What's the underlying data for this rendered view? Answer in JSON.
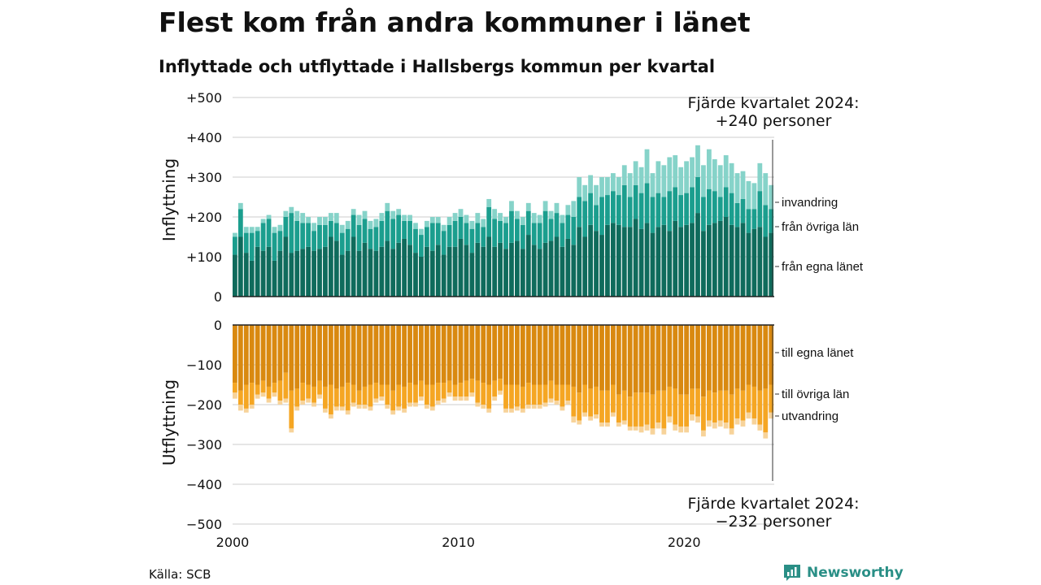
{
  "title": "Flest kom från andra kommuner i länet",
  "subtitle": "Inflyttade och utflyttade i Hallsbergs kommun per kvartal",
  "source": "Källa: SCB",
  "brand": {
    "name": "Newsworthy",
    "icon": "chart-bubble-icon"
  },
  "colors": {
    "in_own": "#0f6b5c",
    "in_other": "#1b9e8e",
    "in_imm": "#86d3c9",
    "out_own": "#d98910",
    "out_other": "#f5a623",
    "out_emi": "#f7d39a",
    "grid": "#dddddd"
  },
  "chart_data": {
    "type": "bar",
    "stacked": true,
    "x_start": "2000Q1",
    "x_ticks": [
      "2000",
      "2010",
      "2020"
    ],
    "y_ticks_top": [
      "+500",
      "+400",
      "+300",
      "+200",
      "+100",
      "0"
    ],
    "y_ticks_bottom": [
      "0",
      "−100",
      "−200",
      "−300",
      "−400",
      "−500"
    ],
    "ylim_top": [
      0,
      500
    ],
    "ylim_bottom": [
      -500,
      0
    ],
    "ylabel_top": "Inflyttning",
    "ylabel_bottom": "Utflyttning",
    "grid": true,
    "series_labels_in": [
      "invandring",
      "från övriga län",
      "från egna länet"
    ],
    "series_labels_out": [
      "till egna länet",
      "till övriga län",
      "utvandring"
    ],
    "annotation_top": {
      "line1": "Fjärde kvartalet 2024:",
      "line2": "+240 personer"
    },
    "annotation_bottom": {
      "line1": "Fjärde kvartalet 2024:",
      "line2": "−232 personer"
    },
    "in_own": [
      105,
      150,
      110,
      90,
      125,
      115,
      125,
      90,
      115,
      150,
      110,
      115,
      120,
      125,
      115,
      120,
      125,
      150,
      140,
      105,
      115,
      150,
      115,
      135,
      120,
      115,
      125,
      140,
      120,
      135,
      145,
      130,
      110,
      100,
      125,
      115,
      130,
      105,
      125,
      125,
      145,
      130,
      110,
      135,
      125,
      150,
      125,
      135,
      120,
      135,
      140,
      120,
      155,
      130,
      120,
      135,
      140,
      150,
      125,
      145,
      130,
      175,
      150,
      180,
      165,
      155,
      180,
      185,
      180,
      175,
      175,
      195,
      170,
      185,
      160,
      175,
      180,
      165,
      190,
      175,
      180,
      185,
      210,
      165,
      180,
      185,
      190,
      200,
      180,
      175,
      185,
      160,
      170,
      175,
      150,
      160
    ],
    "in_other": [
      45,
      70,
      50,
      70,
      40,
      70,
      70,
      70,
      50,
      50,
      100,
      75,
      65,
      60,
      50,
      60,
      55,
      40,
      45,
      55,
      55,
      55,
      65,
      60,
      50,
      60,
      65,
      75,
      75,
      70,
      45,
      60,
      60,
      55,
      50,
      70,
      55,
      60,
      55,
      65,
      55,
      55,
      60,
      50,
      50,
      75,
      70,
      55,
      65,
      80,
      55,
      60,
      60,
      55,
      65,
      80,
      55,
      60,
      60,
      60,
      70,
      75,
      90,
      80,
      65,
      95,
      75,
      80,
      75,
      105,
      75,
      85,
      90,
      100,
      90,
      85,
      70,
      100,
      85,
      80,
      80,
      90,
      90,
      85,
      90,
      80,
      60,
      75,
      80,
      60,
      60,
      60,
      50,
      90,
      80,
      60
    ],
    "in_imm": [
      10,
      15,
      15,
      15,
      10,
      10,
      10,
      15,
      15,
      15,
      15,
      25,
      25,
      15,
      20,
      20,
      20,
      20,
      25,
      20,
      20,
      15,
      25,
      20,
      20,
      20,
      20,
      20,
      20,
      15,
      15,
      15,
      15,
      15,
      15,
      15,
      15,
      15,
      20,
      20,
      20,
      20,
      20,
      25,
      20,
      20,
      25,
      20,
      15,
      25,
      20,
      20,
      20,
      25,
      20,
      25,
      20,
      25,
      20,
      25,
      40,
      50,
      40,
      45,
      50,
      50,
      45,
      45,
      45,
      50,
      60,
      60,
      65,
      85,
      60,
      80,
      80,
      85,
      80,
      70,
      80,
      75,
      80,
      80,
      100,
      80,
      80,
      80,
      75,
      75,
      70,
      70,
      65,
      70,
      80,
      60
    ],
    "out_own": [
      145,
      165,
      150,
      145,
      150,
      140,
      155,
      145,
      140,
      120,
      165,
      160,
      145,
      150,
      155,
      140,
      155,
      150,
      160,
      155,
      145,
      150,
      165,
      155,
      150,
      145,
      150,
      150,
      165,
      150,
      155,
      145,
      150,
      140,
      150,
      150,
      145,
      145,
      140,
      150,
      145,
      140,
      135,
      140,
      145,
      150,
      140,
      135,
      150,
      150,
      150,
      155,
      145,
      150,
      150,
      150,
      140,
      150,
      150,
      150,
      155,
      170,
      150,
      160,
      155,
      165,
      165,
      150,
      175,
      165,
      180,
      170,
      170,
      170,
      175,
      165,
      165,
      155,
      160,
      175,
      175,
      160,
      160,
      180,
      165,
      170,
      165,
      165,
      175,
      160,
      165,
      150,
      155,
      165,
      160,
      150
    ],
    "out_other": [
      25,
      35,
      60,
      55,
      25,
      30,
      30,
      25,
      50,
      65,
      95,
      45,
      45,
      35,
      40,
      35,
      55,
      75,
      45,
      50,
      70,
      45,
      35,
      45,
      55,
      40,
      30,
      50,
      50,
      55,
      55,
      50,
      45,
      40,
      50,
      55,
      45,
      40,
      30,
      30,
      35,
      40,
      35,
      55,
      55,
      60,
      40,
      30,
      60,
      60,
      55,
      55,
      55,
      50,
      50,
      45,
      45,
      40,
      55,
      40,
      75,
      70,
      70,
      70,
      70,
      80,
      80,
      70,
      70,
      75,
      75,
      85,
      85,
      80,
      85,
      80,
      95,
      75,
      90,
      80,
      80,
      65,
      70,
      85,
      75,
      75,
      75,
      80,
      85,
      75,
      75,
      70,
      80,
      85,
      110,
      70
    ],
    "out_emi": [
      15,
      15,
      10,
      10,
      10,
      10,
      10,
      10,
      10,
      10,
      10,
      10,
      10,
      10,
      10,
      10,
      10,
      10,
      10,
      10,
      10,
      10,
      10,
      10,
      10,
      10,
      10,
      10,
      10,
      10,
      10,
      10,
      10,
      10,
      10,
      10,
      10,
      10,
      10,
      10,
      10,
      10,
      10,
      10,
      10,
      10,
      10,
      10,
      10,
      10,
      10,
      10,
      10,
      10,
      10,
      10,
      10,
      10,
      10,
      10,
      15,
      10,
      10,
      10,
      10,
      10,
      10,
      10,
      10,
      10,
      10,
      10,
      15,
      15,
      15,
      15,
      15,
      15,
      15,
      15,
      15,
      15,
      15,
      15,
      15,
      15,
      15,
      15,
      15,
      15,
      15,
      15,
      15,
      15,
      15,
      15
    ]
  }
}
